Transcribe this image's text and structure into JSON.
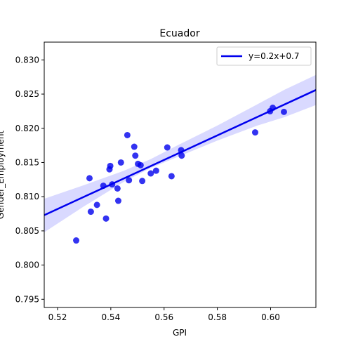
{
  "chart_data": {
    "type": "scatter",
    "title": "Ecuador",
    "xlabel": "GPI",
    "ylabel": "Gender_Employment",
    "xlim": [
      0.515,
      0.617
    ],
    "ylim": [
      0.7938,
      0.8326
    ],
    "xticks": [
      "0.52",
      "0.54",
      "0.56",
      "0.58",
      "0.60"
    ],
    "yticks": [
      "0.795",
      "0.800",
      "0.805",
      "0.810",
      "0.815",
      "0.820",
      "0.825",
      "0.830"
    ],
    "grid": false,
    "legend": {
      "placement": "top-right",
      "entries": [
        "y=0.2x+0.7"
      ]
    },
    "points": {
      "color": "#0000ee",
      "x": [
        0.527,
        0.532,
        0.5325,
        0.5348,
        0.5372,
        0.5382,
        0.5395,
        0.5398,
        0.5405,
        0.5425,
        0.5428,
        0.5438,
        0.5462,
        0.5468,
        0.5488,
        0.5492,
        0.5502,
        0.5512,
        0.5518,
        0.555,
        0.557,
        0.5612,
        0.5628,
        0.5664,
        0.5666,
        0.5942,
        0.5998,
        0.6008,
        0.605
      ],
      "y": [
        0.8036,
        0.8127,
        0.8078,
        0.8088,
        0.8116,
        0.8068,
        0.814,
        0.8145,
        0.8118,
        0.8112,
        0.8094,
        0.815,
        0.819,
        0.8124,
        0.8173,
        0.816,
        0.8148,
        0.8146,
        0.8123,
        0.8134,
        0.8138,
        0.8172,
        0.813,
        0.8168,
        0.816,
        0.8194,
        0.8225,
        0.823,
        0.8224
      ]
    },
    "regression": {
      "name": "y=0.2x+0.7",
      "color": "#0000ee",
      "x": [
        0.515,
        0.617
      ],
      "y": [
        0.8073,
        0.8256
      ],
      "band_color": "#ccccff",
      "band": {
        "x": [
          0.515,
          0.53,
          0.545,
          0.555,
          0.565,
          0.58,
          0.595,
          0.605,
          0.617
        ],
        "lower": [
          0.8048,
          0.8086,
          0.8122,
          0.8142,
          0.8158,
          0.8182,
          0.8204,
          0.8216,
          0.8234
        ],
        "upper": [
          0.8097,
          0.8117,
          0.8138,
          0.8155,
          0.8175,
          0.8204,
          0.8235,
          0.8256,
          0.8278
        ]
      }
    }
  }
}
